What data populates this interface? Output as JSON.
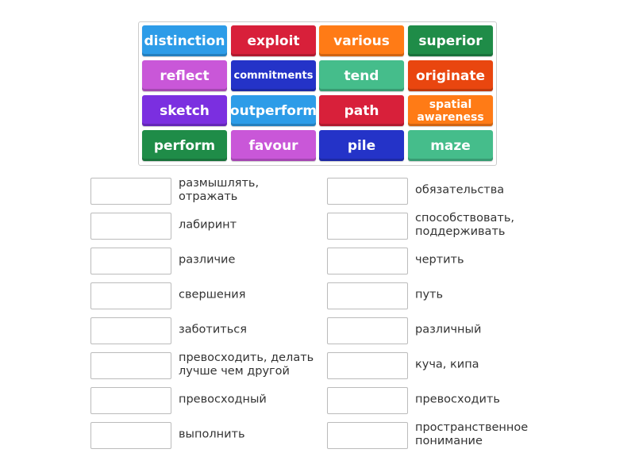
{
  "tiles": [
    {
      "label": "distinction",
      "color": "#2d9ce8"
    },
    {
      "label": "exploit",
      "color": "#d8203a"
    },
    {
      "label": "various",
      "color": "#ff7b16"
    },
    {
      "label": "superior",
      "color": "#1f8c48"
    },
    {
      "label": "reflect",
      "color": "#c957d8"
    },
    {
      "label": "commitments",
      "color": "#2433c8"
    },
    {
      "label": "tend",
      "color": "#45bd8b"
    },
    {
      "label": "originate",
      "color": "#e9460f"
    },
    {
      "label": "sketch",
      "color": "#7b2fe0"
    },
    {
      "label": "outperform",
      "color": "#2d9ce8"
    },
    {
      "label": "path",
      "color": "#d8203a"
    },
    {
      "label": "spatial awareness",
      "color": "#ff7b16"
    },
    {
      "label": "perform",
      "color": "#1f8c48"
    },
    {
      "label": "favour",
      "color": "#c957d8"
    },
    {
      "label": "pile",
      "color": "#2433c8"
    },
    {
      "label": "maze",
      "color": "#45bd8b"
    }
  ],
  "left_definitions": [
    "размышлять, отражать",
    "лабиринт",
    "различие",
    "свершения",
    "заботиться",
    "превосходить, делать лучше чем другой",
    "превосходный",
    "выполнить"
  ],
  "right_definitions": [
    "обязательства",
    "способствовать, поддерживать",
    "чертить",
    "путь",
    "различный",
    "куча, кипа",
    "превосходить",
    "пространственное понимание"
  ]
}
